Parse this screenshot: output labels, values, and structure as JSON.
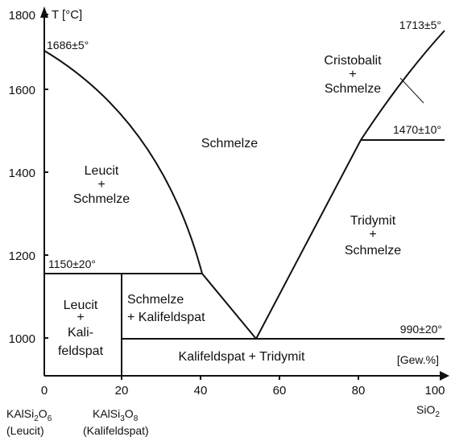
{
  "diagram": {
    "y_axis": {
      "label": "T [°C]",
      "ticks": [
        "1800",
        "1600",
        "1400",
        "1200",
        "1000"
      ]
    },
    "x_axis": {
      "unit": "[Gew.%]",
      "ticks": [
        "0",
        "20",
        "40",
        "60",
        "80",
        "100"
      ]
    },
    "annotations": {
      "leucite_melt": "1686±5°",
      "cristobalite_melt": "1713±5°",
      "tridymite_cristobalite": "1470±10°",
      "leucite_reaction": "1150±20°",
      "eutectic": "990±20°"
    },
    "fields": {
      "melt": "Schmelze",
      "leucit_melt": [
        "Leucit",
        "+",
        "Schmelze"
      ],
      "cristobalit_melt": [
        "Cristobalit",
        "+",
        "Schmelze"
      ],
      "tridymit_melt": [
        "Tridymit",
        "+",
        "Schmelze"
      ],
      "melt_kalifeldspat": [
        "Schmelze",
        "+ Kalifeldspat"
      ],
      "leucit_kalifeldspat": [
        "Leucit",
        "+",
        "Kali-",
        "feldspat"
      ],
      "kalifeldspat_tridymit": "Kalifeldspat + Tridymit"
    },
    "compositions": {
      "leucit": {
        "formula_main": "KAlSi",
        "sub1": "2",
        "o": "O",
        "sub2": "6",
        "name": "(Leucit)"
      },
      "kalifeldspat": {
        "formula_main": "KAlSi",
        "sub1": "3",
        "o": "O",
        "sub2": "8",
        "name": "(Kalifeldspat)"
      },
      "sio2": {
        "formula_main": "SiO",
        "sub": "2"
      }
    }
  }
}
